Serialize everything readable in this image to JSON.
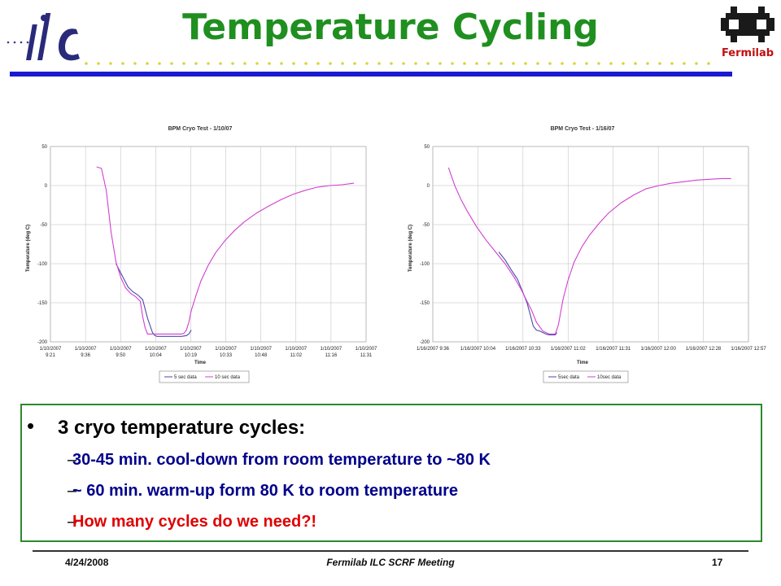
{
  "slide": {
    "title": "Temperature Cycling",
    "logo_right_text": "Fermilab"
  },
  "charts_text": [
    {
      "title": "BPM Cryo Test - 1/10/07",
      "xlabel": "Time",
      "ylabel": "Temperature (deg C)",
      "legend": [
        "5 sec data",
        "10 sec data"
      ]
    },
    {
      "title": "BPM Cryo Test - 1/16/07",
      "xlabel": "Time",
      "ylabel": "Temperature (deg C)",
      "legend": [
        "5sec data",
        "10sec data"
      ]
    }
  ],
  "chart_data": [
    {
      "type": "line",
      "title": "BPM Cryo Test - 1/10/07",
      "xlabel": "Time",
      "ylabel": "Temperature (deg C)",
      "ylim": [
        -200,
        50
      ],
      "yticks": [
        50,
        0,
        -50,
        -100,
        -150,
        -200
      ],
      "xtick_labels": [
        [
          "1/10/2007",
          "9:21"
        ],
        [
          "1/10/2007",
          "9:36"
        ],
        [
          "1/10/2007",
          "9:50"
        ],
        [
          "1/10/2007",
          "10:04"
        ],
        [
          "1/10/2007",
          "10:19"
        ],
        [
          "1/10/2007",
          "10:33"
        ],
        [
          "1/10/2007",
          "10:48"
        ],
        [
          "1/10/2007",
          "11:02"
        ],
        [
          "1/10/2007",
          "11:16"
        ],
        [
          "1/10/2007",
          "11:31"
        ]
      ],
      "x_range_minutes": [
        0,
        130
      ],
      "grid": true,
      "legend_position": "bottom",
      "colors": {
        "5 sec data": "#4a4aa8",
        "10 sec data": "#d040d0"
      },
      "series": [
        {
          "name": "5 sec data",
          "x_minutes": [
            27,
            30,
            32,
            34,
            36,
            38,
            40,
            42,
            43,
            44,
            45,
            46,
            47,
            48,
            49,
            50,
            51,
            52,
            53,
            54,
            56,
            57,
            58
          ],
          "values": [
            -100,
            -118,
            -130,
            -136,
            -140,
            -146,
            -170,
            -188,
            -192,
            -193,
            -193,
            -193,
            -193,
            -193,
            -193,
            -193,
            -193,
            -193,
            -193,
            -193,
            -192,
            -190,
            -185
          ]
        },
        {
          "name": "10 sec data",
          "x_minutes": [
            19,
            21,
            23,
            25,
            27,
            29,
            31,
            33,
            35,
            37,
            38,
            39,
            40,
            42,
            44,
            46,
            48,
            50,
            52,
            54,
            55,
            56,
            57,
            58,
            60,
            62,
            65,
            68,
            72,
            76,
            80,
            85,
            90,
            95,
            100,
            105,
            110,
            115,
            120,
            125
          ],
          "values": [
            24,
            22,
            -6,
            -60,
            -98,
            -118,
            -131,
            -138,
            -142,
            -148,
            -168,
            -182,
            -190,
            -190,
            -190,
            -190,
            -190,
            -190,
            -190,
            -190,
            -189,
            -185,
            -175,
            -160,
            -140,
            -122,
            -102,
            -86,
            -70,
            -57,
            -46,
            -35,
            -26,
            -18,
            -11,
            -6,
            -2,
            0,
            1,
            3
          ]
        }
      ]
    },
    {
      "type": "line",
      "title": "BPM Cryo Test - 1/16/07",
      "xlabel": "Time",
      "ylabel": "Temperature (deg C)",
      "ylim": [
        -200,
        50
      ],
      "yticks": [
        50,
        0,
        -50,
        -100,
        -150,
        -200
      ],
      "xtick_labels": [
        "1/16/2007 9:36",
        "1/16/2007 10:04",
        "1/16/2007 10:33",
        "1/16/2007 11:02",
        "1/16/2007 11:31",
        "1/16/2007 12:00",
        "1/16/2007 12:28",
        "1/16/2007 12:57"
      ],
      "x_range_minutes": [
        0,
        201
      ],
      "grid": true,
      "legend_position": "bottom",
      "colors": {
        "5sec data": "#4a4aa8",
        "10sec data": "#d040d0"
      },
      "series": [
        {
          "name": "5sec data",
          "x_minutes": [
            42,
            46,
            50,
            54,
            56,
            58,
            60,
            62,
            64,
            66,
            68,
            70,
            72,
            74,
            76,
            78,
            79
          ],
          "values": [
            -85,
            -95,
            -108,
            -120,
            -130,
            -140,
            -150,
            -165,
            -180,
            -185,
            -186,
            -188,
            -190,
            -191,
            -191,
            -191,
            -188
          ]
        },
        {
          "name": "10sec data",
          "x_minutes": [
            10,
            14,
            18,
            22,
            28,
            34,
            40,
            46,
            52,
            56,
            60,
            63,
            66,
            70,
            74,
            76,
            78,
            80,
            83,
            86,
            90,
            95,
            100,
            106,
            112,
            120,
            128,
            136,
            144,
            152,
            160,
            168,
            176,
            184,
            190
          ],
          "values": [
            23,
            0,
            -18,
            -33,
            -53,
            -70,
            -85,
            -100,
            -118,
            -132,
            -148,
            -160,
            -175,
            -186,
            -190,
            -190,
            -190,
            -178,
            -145,
            -122,
            -98,
            -78,
            -63,
            -48,
            -35,
            -22,
            -12,
            -4,
            0,
            3,
            5,
            7,
            8,
            9,
            9
          ]
        }
      ]
    }
  ],
  "bullets": {
    "main": "3 cryo temperature cycles:",
    "subs": [
      "30-45 min. cool-down from room temperature to ~80 K",
      "~ 60 min. warm-up form 80 K to room temperature",
      "How many cycles do we need?!"
    ]
  },
  "footer": {
    "date": "4/24/2008",
    "center": "Fermilab ILC SCRF Meeting",
    "page": "17"
  },
  "colors": {
    "title_green": "#1f8f1f",
    "rule_blue": "#1a1ad0",
    "box_green": "#2d8a2d",
    "sub_blue": "#00008b",
    "sub_red": "#e00000"
  }
}
